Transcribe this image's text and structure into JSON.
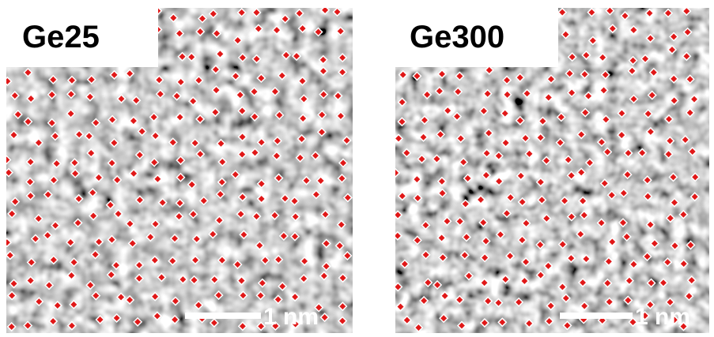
{
  "panels": [
    {
      "label": "Ge25",
      "scale_bar": "1 nm"
    },
    {
      "label": "Ge300",
      "scale_bar": "1 nm"
    }
  ]
}
